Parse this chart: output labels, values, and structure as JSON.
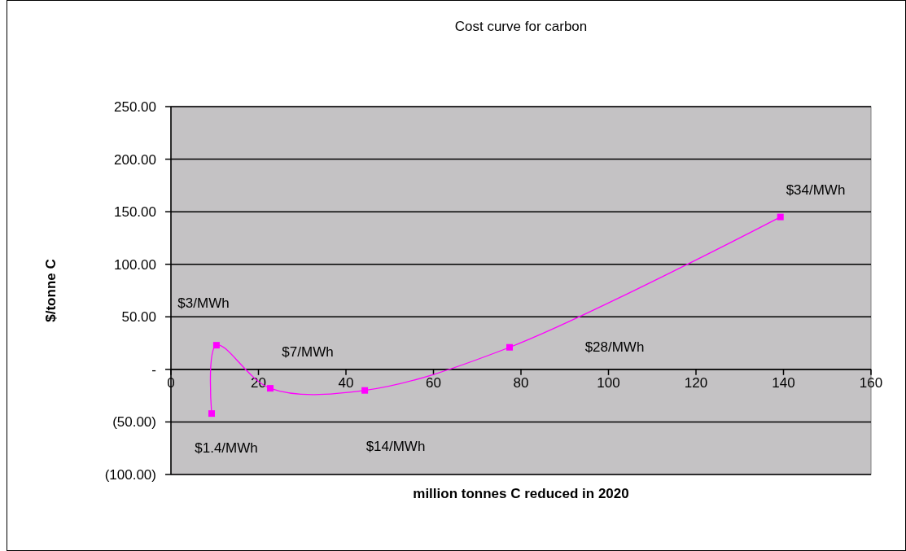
{
  "chart_data": {
    "type": "line",
    "title": "Cost curve for carbon",
    "xlabel": "million tonnes C reduced in 2020",
    "ylabel": "$/tonne C",
    "series": [
      {
        "color": "#ff00ff",
        "x": [
          9.3,
          10.4,
          22.7,
          44.3,
          77.4,
          139.3
        ],
        "values": [
          -42,
          23,
          -18,
          -20,
          21,
          145
        ]
      }
    ],
    "annotations": [
      "$1.4/MWh",
      "$3/MWh",
      "$7/MWh",
      "$14/MWh",
      "$28/MWh",
      "$34/MWh"
    ],
    "xlim": [
      0,
      160
    ],
    "xticks": [
      0,
      20,
      40,
      60,
      80,
      100,
      120,
      140,
      160
    ],
    "ylim": [
      -100,
      250
    ],
    "yticks": [
      {
        "value": -100,
        "label": "(100.00)"
      },
      {
        "value": -50,
        "label": "(50.00)"
      },
      {
        "value": 0,
        "label": "-"
      },
      {
        "value": 50,
        "label": "50.00"
      },
      {
        "value": 100,
        "label": "100.00"
      },
      {
        "value": 150,
        "label": "150.00"
      },
      {
        "value": 200,
        "label": "200.00"
      },
      {
        "value": 250,
        "label": "250.00"
      }
    ],
    "grid": "y",
    "marker": "square",
    "line_style": "solid"
  }
}
